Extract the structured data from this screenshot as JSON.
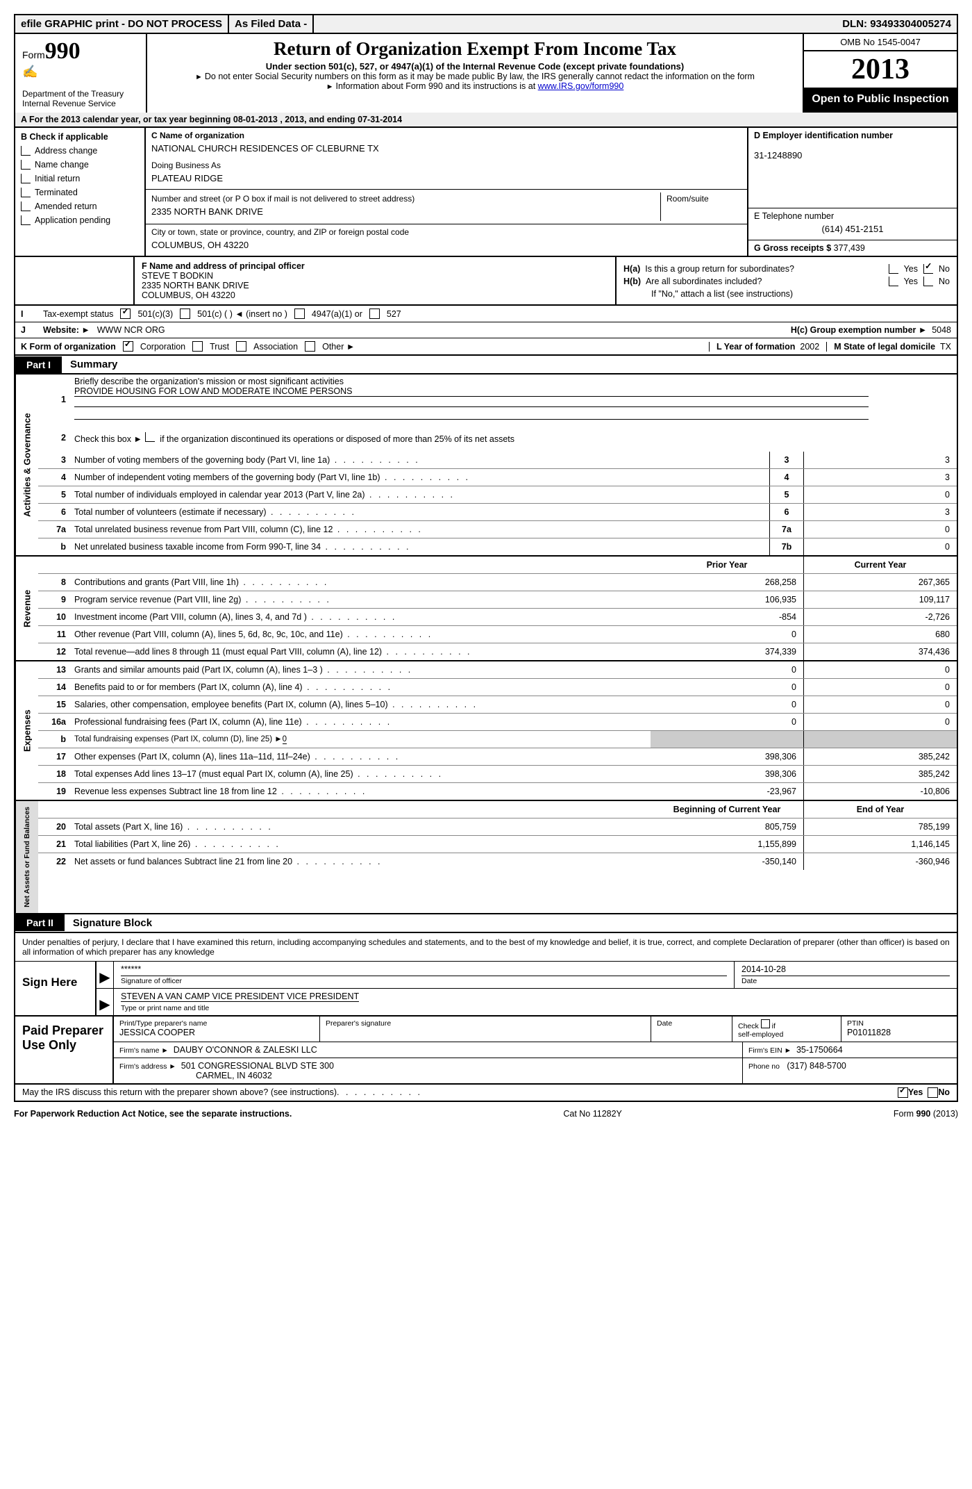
{
  "topbar": {
    "efile": "efile GRAPHIC print - DO NOT PROCESS",
    "asfiled": "As Filed Data -",
    "dln_lbl": "DLN:",
    "dln": "93493304005274"
  },
  "header": {
    "form_word": "Form",
    "form_num": "990",
    "dept": "Department of the Treasury",
    "irs": "Internal Revenue Service",
    "title": "Return of Organization Exempt From Income Tax",
    "sub": "Under section 501(c), 527, or 4947(a)(1) of the Internal Revenue Code (except private foundations)",
    "note1_a": "Do not enter Social Security numbers on this form as it may be made public  By law, the IRS generally cannot redact the information on the form",
    "note2_a": "Information about Form 990 and its instructions is at ",
    "note2_link": "www.IRS.gov/form990",
    "omb": "OMB No  1545-0047",
    "year": "2013",
    "open": "Open to Public Inspection"
  },
  "rowA": "A  For the 2013 calendar year, or tax year beginning 08-01-2013     , 2013, and ending 07-31-2014",
  "colB": {
    "hdr": "B  Check if applicable",
    "items": [
      "Address change",
      "Name change",
      "Initial return",
      "Terminated",
      "Amended return",
      "Application pending"
    ]
  },
  "colC": {
    "name_lbl": "C Name of organization",
    "name": "NATIONAL CHURCH RESIDENCES OF CLEBURNE TX",
    "dba_lbl": "Doing Business As",
    "dba": "PLATEAU RIDGE",
    "addr_lbl": "Number and street (or P O  box if mail is not delivered to street address)",
    "room_lbl": "Room/suite",
    "addr": "2335 NORTH BANK DRIVE",
    "city_lbl": "City or town, state or province, country, and ZIP or foreign postal code",
    "city": "COLUMBUS, OH   43220"
  },
  "colD": {
    "ein_lbl": "D Employer identification number",
    "ein": "31-1248890",
    "tel_lbl": "E Telephone number",
    "tel": "(614) 451-2151",
    "gross_lbl": "G Gross receipts $",
    "gross": "377,439"
  },
  "colF": {
    "lbl": "F   Name and address of principal officer",
    "name": "STEVE T BODKIN",
    "addr1": "2335 NORTH BANK DRIVE",
    "addr2": "COLUMBUS, OH  43220"
  },
  "colH": {
    "ha": "H(a)  Is this a group return for subordinates?",
    "hb": "H(b)  Are all subordinates included?",
    "hb_note": "If \"No,\" attach a list  (see instructions)",
    "hc_lbl": "H(c)   Group exemption number ►",
    "hc_val": "5048",
    "yes": "Yes",
    "no": "No"
  },
  "rowI": {
    "lbl": "I",
    "text": "Tax-exempt status",
    "opt1": "501(c)(3)",
    "opt2": "501(c) (   ) ◄ (insert no )",
    "opt3": "4947(a)(1) or",
    "opt4": "527"
  },
  "rowJ": {
    "lbl": "J",
    "text": "Website: ►",
    "val": "WWW NCR ORG"
  },
  "rowK": {
    "lbl": "K Form of organization",
    "opts": [
      "Corporation",
      "Trust",
      "Association",
      "Other ►"
    ],
    "l_lbl": "L Year of formation",
    "l_val": "2002",
    "m_lbl": "M State of legal domicile",
    "m_val": "TX"
  },
  "part1": {
    "tag": "Part I",
    "title": "Summary"
  },
  "gov": {
    "side": "Activities & Governance",
    "l1": "Briefly describe the organization's mission or most significant activities",
    "l1v": "PROVIDE HOUSING FOR LOW AND MODERATE INCOME PERSONS",
    "l2": "Check this box ►     if the organization discontinued its operations or disposed of more than 25% of its net assets",
    "lines": [
      {
        "n": "3",
        "t": "Number of voting members of the governing body (Part VI, line 1a)",
        "v": "3"
      },
      {
        "n": "4",
        "t": "Number of independent voting members of the governing body (Part VI, line 1b)",
        "v": "3"
      },
      {
        "n": "5",
        "t": "Total number of individuals employed in calendar year 2013 (Part V, line 2a)",
        "v": "0"
      },
      {
        "n": "6",
        "t": "Total number of volunteers (estimate if necessary)",
        "v": "3"
      },
      {
        "n": "7a",
        "t": "Total unrelated business revenue from Part VIII, column (C), line 12",
        "v": "0"
      },
      {
        "n": "b",
        "t": "Net unrelated business taxable income from Form 990-T, line 34",
        "nc": "7b",
        "v": "0"
      }
    ]
  },
  "cols": {
    "prior": "Prior Year",
    "current": "Current Year",
    "begin": "Beginning of Current Year",
    "end": "End of Year"
  },
  "rev": {
    "side": "Revenue",
    "lines": [
      {
        "n": "8",
        "t": "Contributions and grants (Part VIII, line 1h)",
        "p": "268,258",
        "c": "267,365"
      },
      {
        "n": "9",
        "t": "Program service revenue (Part VIII, line 2g)",
        "p": "106,935",
        "c": "109,117"
      },
      {
        "n": "10",
        "t": "Investment income (Part VIII, column (A), lines 3, 4, and 7d )",
        "p": "-854",
        "c": "-2,726"
      },
      {
        "n": "11",
        "t": "Other revenue (Part VIII, column (A), lines 5, 6d, 8c, 9c, 10c, and 11e)",
        "p": "0",
        "c": "680"
      },
      {
        "n": "12",
        "t": "Total revenue—add lines 8 through 11 (must equal Part VIII, column (A), line 12)",
        "p": "374,339",
        "c": "374,436"
      }
    ]
  },
  "exp": {
    "side": "Expenses",
    "lines": [
      {
        "n": "13",
        "t": "Grants and similar amounts paid (Part IX, column (A), lines 1–3 )",
        "p": "0",
        "c": "0"
      },
      {
        "n": "14",
        "t": "Benefits paid to or for members (Part IX, column (A), line 4)",
        "p": "0",
        "c": "0"
      },
      {
        "n": "15",
        "t": "Salaries, other compensation, employee benefits (Part IX, column (A), lines 5–10)",
        "p": "0",
        "c": "0"
      },
      {
        "n": "16a",
        "t": "Professional fundraising fees (Part IX, column (A), line 11e)",
        "p": "0",
        "c": "0"
      },
      {
        "n": "b",
        "t": "Total fundraising expenses (Part IX, column (D), line 25) ►",
        "sub": "0",
        "p": "",
        "c": ""
      },
      {
        "n": "17",
        "t": "Other expenses (Part IX, column (A), lines 11a–11d, 11f–24e)",
        "p": "398,306",
        "c": "385,242"
      },
      {
        "n": "18",
        "t": "Total expenses  Add lines 13–17 (must equal Part IX, column (A), line 25)",
        "p": "398,306",
        "c": "385,242"
      },
      {
        "n": "19",
        "t": "Revenue less expenses  Subtract line 18 from line 12",
        "p": "-23,967",
        "c": "-10,806"
      }
    ]
  },
  "net": {
    "side": "Net Assets or Fund Balances",
    "lines": [
      {
        "n": "20",
        "t": "Total assets (Part X, line 16)",
        "p": "805,759",
        "c": "785,199"
      },
      {
        "n": "21",
        "t": "Total liabilities (Part X, line 26)",
        "p": "1,155,899",
        "c": "1,146,145"
      },
      {
        "n": "22",
        "t": "Net assets or fund balances  Subtract line 21 from line 20",
        "p": "-350,140",
        "c": "-360,946"
      }
    ]
  },
  "part2": {
    "tag": "Part II",
    "title": "Signature Block"
  },
  "perjury": "Under penalties of perjury, I declare that I have examined this return, including accompanying schedules and statements, and to the best of my knowledge and belief, it is true, correct, and complete  Declaration of preparer (other than officer) is based on all information of which preparer has any knowledge",
  "sign": {
    "here": "Sign Here",
    "sig": "******",
    "sig_lbl": "Signature of officer",
    "date": "2014-10-28",
    "date_lbl": "Date",
    "name": "STEVEN A VAN CAMP VICE PRESIDENT VICE PRESIDENT",
    "name_lbl": "Type or print name and title"
  },
  "prep": {
    "left": "Paid Preparer Use Only",
    "name_lbl": "Print/Type preparer's name",
    "name": "JESSICA COOPER",
    "sig_lbl": "Preparer's signature",
    "date_lbl": "Date",
    "self_lbl": "Check        if self-employed",
    "ptin_lbl": "PTIN",
    "ptin": "P01011828",
    "firm_lbl": "Firm's name     ►",
    "firm": "DAUBY O'CONNOR & ZALESKI LLC",
    "ein_lbl": "Firm's EIN ►",
    "ein": "35-1750664",
    "addr_lbl": "Firm's address ►",
    "addr1": "501 CONGRESSIONAL BLVD STE 300",
    "addr2": "CARMEL, IN   46032",
    "phone_lbl": "Phone no",
    "phone": "(317) 848-5700"
  },
  "discuss": {
    "text": "May the IRS discuss this return with the preparer shown above? (see instructions)",
    "yes": "Yes",
    "no": "No"
  },
  "footer": {
    "left": "For Paperwork Reduction Act Notice, see the separate instructions.",
    "center": "Cat  No  11282Y",
    "right_a": "Form ",
    "right_b": "990",
    "right_c": " (2013)"
  }
}
